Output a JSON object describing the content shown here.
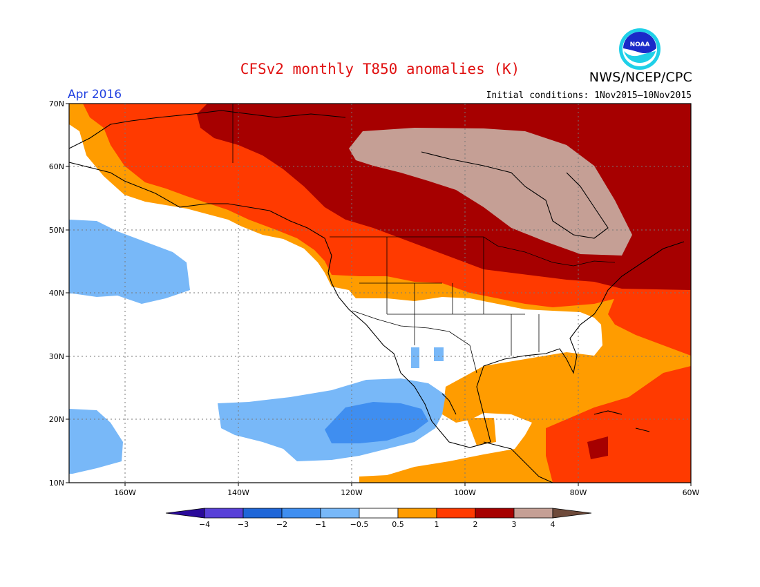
{
  "title": "CFSv2 monthly T850 anomalies (K)",
  "organization": "NWS/NCEP/CPC",
  "logo_text": "NOAA",
  "valid_period": "Apr 2016",
  "initial_conditions": "Initial conditions: 1Nov2015–10Nov2015",
  "map": {
    "lon_range": [
      -172,
      -60
    ],
    "lat_range": [
      10,
      70
    ],
    "lat_ticks": [
      "70N",
      "60N",
      "50N",
      "40N",
      "30N",
      "20N",
      "10N"
    ],
    "lon_ticks": [
      "160W",
      "140W",
      "120W",
      "100W",
      "80W",
      "60W"
    ]
  },
  "colorbar": {
    "labels": [
      "−4",
      "−3",
      "−2",
      "−1",
      "−0.5",
      "0.5",
      "1",
      "2",
      "3",
      "4"
    ],
    "colors": [
      "#2a0a9a",
      "#5840d8",
      "#1f66d8",
      "#3f8ef0",
      "#78b8f8",
      "#ffffff",
      "#ff9c00",
      "#ff3a00",
      "#a60000",
      "#c59f95",
      "#6e4a3a"
    ]
  }
}
